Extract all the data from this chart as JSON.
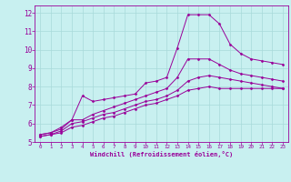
{
  "title": "",
  "xlabel": "Windchill (Refroidissement éolien,°C)",
  "bg_color": "#c8f0f0",
  "grid_color": "#a8dada",
  "line_color": "#990099",
  "xlim": [
    -0.5,
    23.5
  ],
  "ylim": [
    5,
    12.4
  ],
  "xticks": [
    0,
    1,
    2,
    3,
    4,
    5,
    6,
    7,
    8,
    9,
    10,
    11,
    12,
    13,
    14,
    15,
    16,
    17,
    18,
    19,
    20,
    21,
    22,
    23
  ],
  "yticks": [
    5,
    6,
    7,
    8,
    9,
    10,
    11,
    12
  ],
  "curve1_x": [
    0,
    1,
    2,
    3,
    4,
    5,
    6,
    7,
    8,
    9,
    10,
    11,
    12,
    13,
    14,
    15,
    16,
    17,
    18,
    19,
    20,
    21,
    22,
    23
  ],
  "curve1_y": [
    5.4,
    5.5,
    5.8,
    6.2,
    7.5,
    7.2,
    7.3,
    7.4,
    7.5,
    7.6,
    8.2,
    8.3,
    8.5,
    10.1,
    11.9,
    11.9,
    11.9,
    11.4,
    10.3,
    9.8,
    9.5,
    9.4,
    9.3,
    9.2
  ],
  "curve2_x": [
    0,
    1,
    2,
    3,
    4,
    5,
    6,
    7,
    8,
    9,
    10,
    11,
    12,
    13,
    14,
    15,
    16,
    17,
    18,
    19,
    20,
    21,
    22,
    23
  ],
  "curve2_y": [
    5.4,
    5.5,
    5.7,
    6.2,
    6.2,
    6.5,
    6.7,
    6.9,
    7.1,
    7.3,
    7.5,
    7.7,
    7.9,
    8.5,
    9.5,
    9.5,
    9.5,
    9.2,
    8.9,
    8.7,
    8.6,
    8.5,
    8.4,
    8.3
  ],
  "curve3_x": [
    0,
    1,
    2,
    3,
    4,
    5,
    6,
    7,
    8,
    9,
    10,
    11,
    12,
    13,
    14,
    15,
    16,
    17,
    18,
    19,
    20,
    21,
    22,
    23
  ],
  "curve3_y": [
    5.3,
    5.4,
    5.6,
    6.0,
    6.1,
    6.3,
    6.5,
    6.6,
    6.8,
    7.0,
    7.2,
    7.3,
    7.5,
    7.8,
    8.3,
    8.5,
    8.6,
    8.5,
    8.4,
    8.3,
    8.2,
    8.1,
    8.0,
    7.9
  ],
  "curve4_x": [
    0,
    1,
    2,
    3,
    4,
    5,
    6,
    7,
    8,
    9,
    10,
    11,
    12,
    13,
    14,
    15,
    16,
    17,
    18,
    19,
    20,
    21,
    22,
    23
  ],
  "curve4_y": [
    5.3,
    5.4,
    5.5,
    5.8,
    5.9,
    6.1,
    6.3,
    6.4,
    6.6,
    6.8,
    7.0,
    7.1,
    7.3,
    7.5,
    7.8,
    7.9,
    8.0,
    7.9,
    7.9,
    7.9,
    7.9,
    7.9,
    7.9,
    7.9
  ]
}
